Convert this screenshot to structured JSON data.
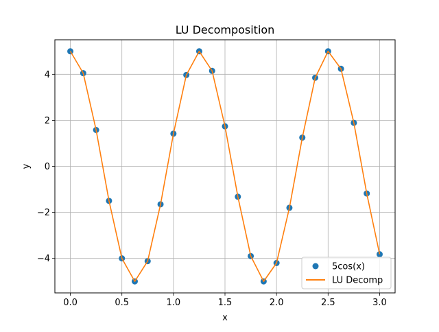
{
  "chart_data": {
    "type": "line",
    "title": "LU Decomposition",
    "xlabel": "x",
    "ylabel": "y",
    "xlim": [
      -0.15,
      3.15
    ],
    "ylim": [
      -5.5,
      5.5
    ],
    "xticks": [
      0.0,
      0.5,
      1.0,
      1.5,
      2.0,
      2.5,
      3.0
    ],
    "xtick_labels": [
      "0.0",
      "0.5",
      "1.0",
      "1.5",
      "2.0",
      "2.5",
      "3.0"
    ],
    "yticks": [
      -4,
      -2,
      0,
      2,
      4
    ],
    "ytick_labels": [
      "−4",
      "−2",
      "0",
      "2",
      "4"
    ],
    "grid": true,
    "legend_position": "lower-right",
    "x": [
      0.0,
      0.125,
      0.25,
      0.375,
      0.5,
      0.625,
      0.75,
      0.875,
      1.0,
      1.125,
      1.25,
      1.375,
      1.5,
      1.625,
      1.75,
      1.875,
      2.0,
      2.125,
      2.25,
      2.375,
      2.5,
      2.625,
      2.75,
      2.875,
      3.0
    ],
    "series": [
      {
        "name": "5cos(x)",
        "type": "scatter",
        "color": "#1f77b4",
        "values": [
          5.0,
          4.05,
          1.58,
          -1.5,
          -4.0,
          -5.0,
          -4.12,
          -1.65,
          1.42,
          3.97,
          5.0,
          4.15,
          1.74,
          -1.32,
          -3.9,
          -5.0,
          -4.2,
          -1.8,
          1.25,
          3.85,
          5.0,
          4.24,
          1.89,
          -1.18,
          -3.82
        ]
      },
      {
        "name": "LU Decomp",
        "type": "line",
        "color": "#ff7f0e",
        "values": [
          5.0,
          4.05,
          1.58,
          -1.5,
          -4.0,
          -5.0,
          -4.12,
          -1.65,
          1.42,
          3.97,
          5.0,
          4.15,
          1.74,
          -1.32,
          -3.9,
          -5.0,
          -4.2,
          -1.8,
          1.25,
          3.85,
          5.0,
          4.24,
          1.89,
          -1.18,
          -3.82
        ]
      }
    ]
  }
}
